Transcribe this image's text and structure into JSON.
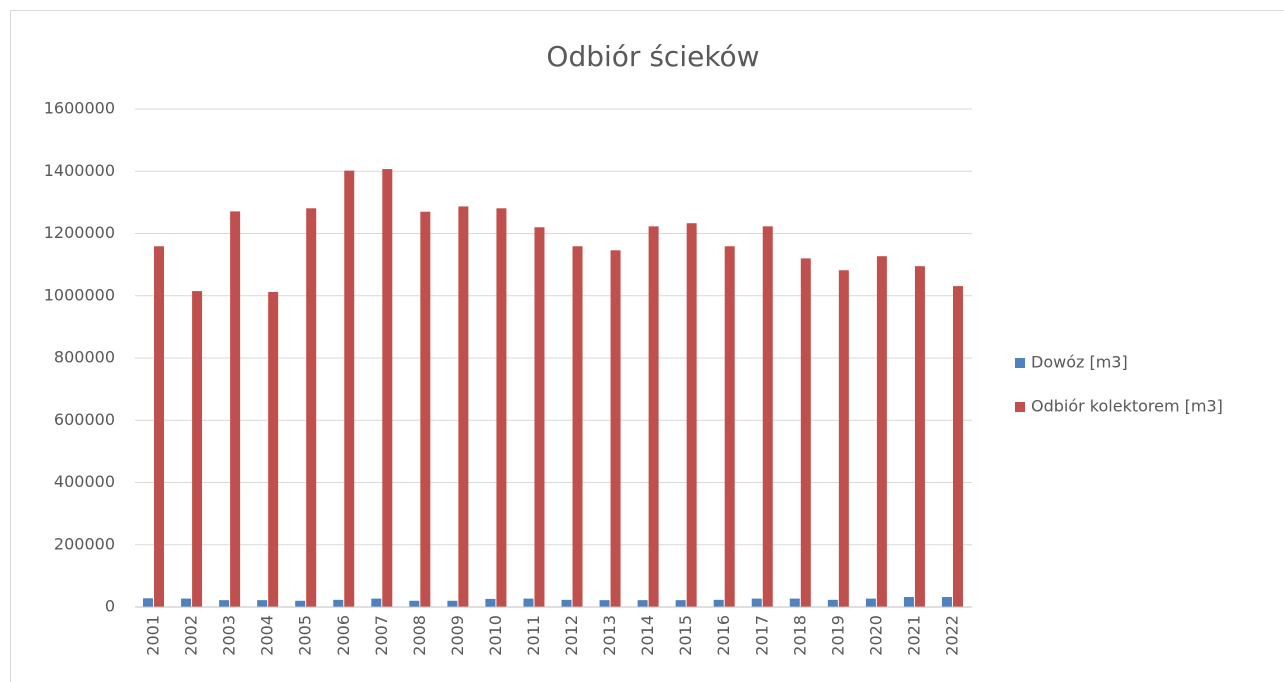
{
  "chart_data": {
    "type": "bar",
    "title": "Odbiór ścieków",
    "categories": [
      "2001",
      "2002",
      "2003",
      "2004",
      "2005",
      "2006",
      "2007",
      "2008",
      "2009",
      "2010",
      "2011",
      "2012",
      "2013",
      "2014",
      "2015",
      "2016",
      "2017",
      "2018",
      "2019",
      "2020",
      "2021",
      "2022"
    ],
    "series": [
      {
        "name": "Dowóz [m3]",
        "color": "#4f81bd",
        "values": [
          28000,
          27000,
          22000,
          22000,
          20000,
          23000,
          27000,
          20000,
          20000,
          26000,
          27000,
          23000,
          22000,
          22000,
          22000,
          23000,
          27000,
          27000,
          23000,
          27000,
          32000,
          32000
        ]
      },
      {
        "name": "Odbiór kolektorem [m3]",
        "color": "#c0504d",
        "values": [
          1159000,
          1015000,
          1271000,
          1012000,
          1281000,
          1402000,
          1407000,
          1270000,
          1287000,
          1281000,
          1220000,
          1159000,
          1146000,
          1223000,
          1233000,
          1159000,
          1223000,
          1120000,
          1082000,
          1127000,
          1095000,
          1031000
        ]
      }
    ],
    "ylim": [
      0,
      1600000
    ],
    "yticks": [
      0,
      200000,
      400000,
      600000,
      800000,
      1000000,
      1200000,
      1400000,
      1600000
    ],
    "grid": true,
    "legend": "right"
  }
}
